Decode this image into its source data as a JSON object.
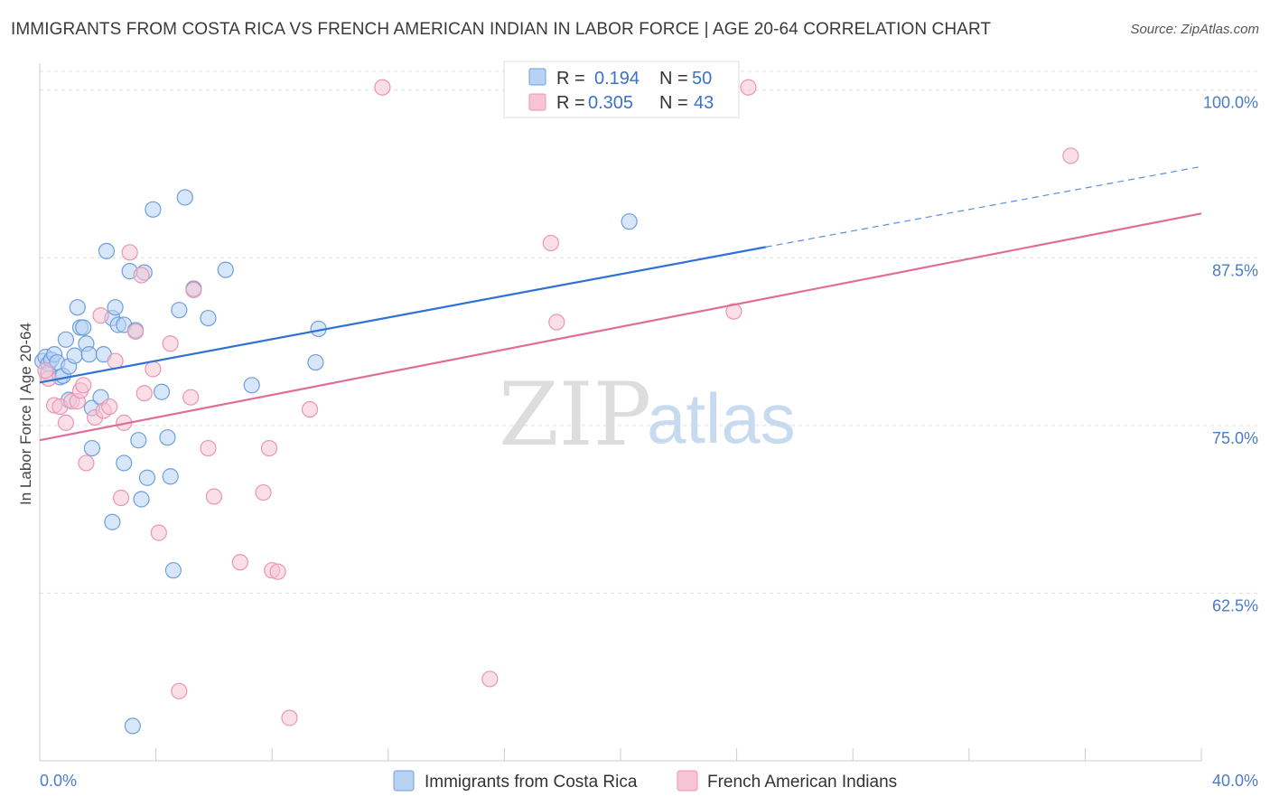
{
  "title": "IMMIGRANTS FROM COSTA RICA VS FRENCH AMERICAN INDIAN IN LABOR FORCE | AGE 20-64 CORRELATION CHART",
  "source": "Source: ZipAtlas.com",
  "watermark": {
    "zip": "ZIP",
    "atlas": "atlas"
  },
  "colors": {
    "blue_fill": "#b8d2f4",
    "blue_stroke": "#6e9fdc",
    "blue_line": "#2f72d4",
    "pink_fill": "#f7c4d4",
    "pink_stroke": "#e996b2",
    "pink_line": "#e06e98",
    "grid": "#dddddd",
    "tick_text": "#4a7cc6"
  },
  "legend": {
    "rows": [
      {
        "r_label": "R =",
        "r_value": "0.194",
        "n_label": "N =",
        "n_value": "50"
      },
      {
        "r_label": "R =",
        "r_value": "0.305",
        "n_label": "N =",
        "n_value": "43"
      }
    ]
  },
  "chart_data": {
    "type": "scatter",
    "ylabel": "In Labor Force | Age 20-64",
    "xlim": [
      0,
      40
    ],
    "ylim": [
      50,
      102
    ],
    "x_tick_labels": [
      {
        "value": 0,
        "label": "0.0%"
      },
      {
        "value": 40,
        "label": "40.0%"
      }
    ],
    "y_ticks": [
      {
        "value": 100,
        "label": "100.0%"
      },
      {
        "value": 87.5,
        "label": "87.5%"
      },
      {
        "value": 75,
        "label": "75.0%"
      },
      {
        "value": 62.5,
        "label": "62.5%"
      }
    ],
    "grid": "horizontal dashed",
    "legend_placement": "top-center",
    "series": [
      {
        "name": "Immigrants from Costa Rica",
        "trend": {
          "x": [
            0,
            25
          ],
          "y": [
            78.2,
            88.3
          ],
          "dashed_to": [
            40,
            94.3
          ]
        },
        "points": [
          [
            0.1,
            79.8
          ],
          [
            0.2,
            80.1
          ],
          [
            0.3,
            79.6
          ],
          [
            0.3,
            78.9
          ],
          [
            0.4,
            79.9
          ],
          [
            0.5,
            80.3
          ],
          [
            0.6,
            79.7
          ],
          [
            0.7,
            78.6
          ],
          [
            0.8,
            78.7
          ],
          [
            0.9,
            81.4
          ],
          [
            1.0,
            76.9
          ],
          [
            1.0,
            79.4
          ],
          [
            1.2,
            80.2
          ],
          [
            1.3,
            83.8
          ],
          [
            1.4,
            82.3
          ],
          [
            1.5,
            82.3
          ],
          [
            1.6,
            81.1
          ],
          [
            1.7,
            80.3
          ],
          [
            1.8,
            76.3
          ],
          [
            2.1,
            77.1
          ],
          [
            2.2,
            80.3
          ],
          [
            2.3,
            88.0
          ],
          [
            2.5,
            83.0
          ],
          [
            2.6,
            83.8
          ],
          [
            2.7,
            82.5
          ],
          [
            2.9,
            72.2
          ],
          [
            2.5,
            67.8
          ],
          [
            1.8,
            73.3
          ],
          [
            2.9,
            82.5
          ],
          [
            3.1,
            86.5
          ],
          [
            3.3,
            82.1
          ],
          [
            3.4,
            73.9
          ],
          [
            3.5,
            69.5
          ],
          [
            3.6,
            86.4
          ],
          [
            3.7,
            71.1
          ],
          [
            3.9,
            91.1
          ],
          [
            4.2,
            77.5
          ],
          [
            4.4,
            74.1
          ],
          [
            4.5,
            71.2
          ],
          [
            4.6,
            64.2
          ],
          [
            4.8,
            83.6
          ],
          [
            5.0,
            92.0
          ],
          [
            5.3,
            85.2
          ],
          [
            5.8,
            83.0
          ],
          [
            6.4,
            86.6
          ],
          [
            7.3,
            78.0
          ],
          [
            9.5,
            79.7
          ],
          [
            9.6,
            82.2
          ],
          [
            20.3,
            90.2
          ],
          [
            3.2,
            52.6
          ]
        ]
      },
      {
        "name": "French American Indians",
        "trend": {
          "x": [
            0,
            40
          ],
          "y": [
            73.9,
            90.8
          ]
        },
        "points": [
          [
            0.3,
            78.5
          ],
          [
            0.5,
            76.5
          ],
          [
            0.7,
            76.4
          ],
          [
            0.9,
            75.2
          ],
          [
            1.1,
            76.8
          ],
          [
            1.3,
            76.8
          ],
          [
            1.4,
            77.6
          ],
          [
            1.5,
            78.0
          ],
          [
            1.6,
            72.2
          ],
          [
            1.9,
            75.6
          ],
          [
            2.1,
            83.2
          ],
          [
            2.2,
            76.1
          ],
          [
            2.4,
            76.4
          ],
          [
            2.6,
            79.8
          ],
          [
            2.8,
            69.6
          ],
          [
            2.9,
            75.2
          ],
          [
            3.1,
            87.9
          ],
          [
            3.3,
            82.0
          ],
          [
            3.5,
            86.2
          ],
          [
            3.6,
            77.4
          ],
          [
            3.9,
            79.2
          ],
          [
            4.1,
            67.0
          ],
          [
            4.5,
            81.1
          ],
          [
            4.8,
            55.2
          ],
          [
            5.2,
            77.1
          ],
          [
            5.3,
            85.1
          ],
          [
            5.8,
            73.3
          ],
          [
            6.0,
            69.7
          ],
          [
            6.9,
            64.8
          ],
          [
            7.7,
            70.0
          ],
          [
            7.9,
            73.3
          ],
          [
            8.0,
            64.2
          ],
          [
            8.2,
            64.1
          ],
          [
            8.6,
            53.2
          ],
          [
            9.3,
            76.2
          ],
          [
            11.8,
            100.2
          ],
          [
            15.5,
            56.1
          ],
          [
            17.6,
            88.6
          ],
          [
            17.8,
            82.7
          ],
          [
            23.9,
            83.5
          ],
          [
            24.4,
            100.2
          ],
          [
            35.5,
            95.1
          ],
          [
            0.2,
            79.1
          ]
        ]
      }
    ]
  }
}
